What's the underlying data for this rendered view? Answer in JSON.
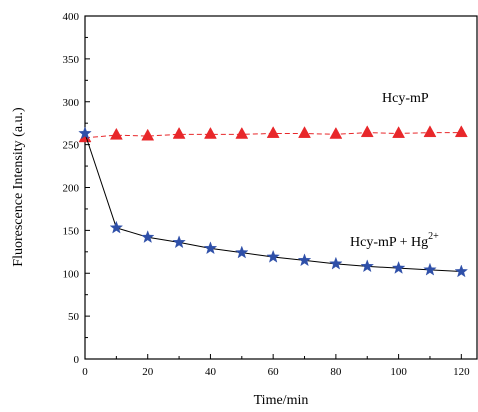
{
  "chart_data": {
    "type": "line",
    "xlabel": "Time/min",
    "ylabel": "Fluorescence Intensity (a.u.)",
    "xlim": [
      0,
      125
    ],
    "ylim": [
      0,
      400
    ],
    "xticks": [
      0,
      20,
      40,
      60,
      80,
      100,
      120
    ],
    "yticks": [
      0,
      50,
      100,
      150,
      200,
      250,
      300,
      350,
      400
    ],
    "grid": false,
    "series": [
      {
        "name": "Hcy-mP",
        "color": "#e8272a",
        "line_style": "dashed",
        "marker": "triangle",
        "x": [
          0,
          10,
          20,
          30,
          40,
          50,
          60,
          70,
          80,
          90,
          100,
          110,
          120
        ],
        "y": [
          258,
          261,
          260,
          262,
          262,
          262,
          263,
          263,
          262,
          264,
          263,
          264,
          264
        ]
      },
      {
        "name": "Hcy-mP + Hg2+",
        "color": "#2e4fa8",
        "line_style": "solid",
        "marker": "star",
        "x": [
          0,
          10,
          20,
          30,
          40,
          50,
          60,
          70,
          80,
          90,
          100,
          110,
          120
        ],
        "y": [
          263,
          153,
          142,
          136,
          129,
          124,
          119,
          115,
          111,
          108,
          106,
          104,
          102
        ]
      }
    ],
    "annotations": {
      "hcy_mp": "Hcy-mP",
      "hcy_mp_hg_base": "Hcy-mP + Hg",
      "hcy_mp_hg_sup": "2+"
    }
  }
}
